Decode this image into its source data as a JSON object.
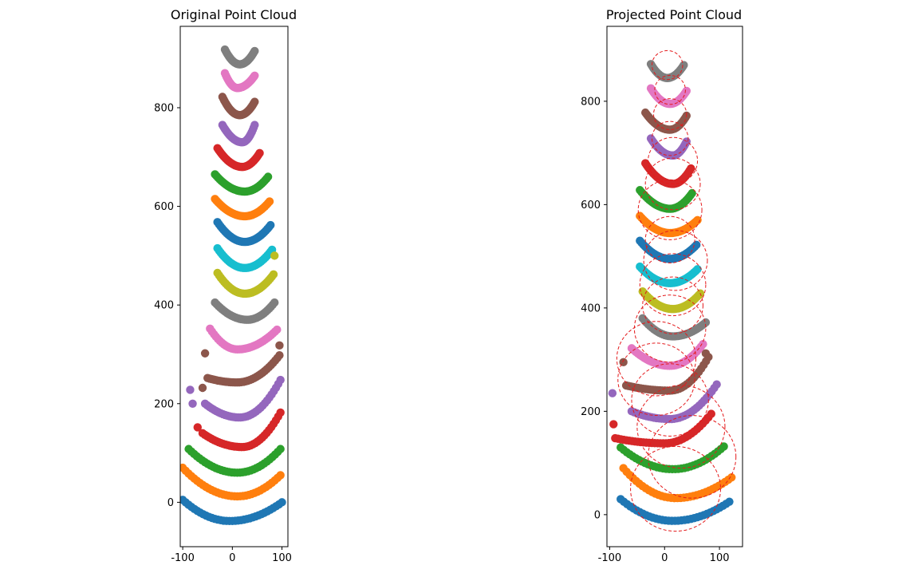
{
  "chart_data": [
    {
      "type": "scatter",
      "title": "Original Point Cloud",
      "xlim": [
        -105,
        112
      ],
      "ylim": [
        -90,
        965
      ],
      "xticks": [
        -100,
        0,
        100
      ],
      "yticks": [
        0,
        200,
        400,
        600,
        800
      ],
      "colors": [
        "#1f77b4",
        "#ff7f0e",
        "#2ca02c",
        "#d62728",
        "#9467bd",
        "#8c564b",
        "#e377c2",
        "#7f7f7f",
        "#bcbd22",
        "#17becf",
        "#1f77b4",
        "#ff7f0e",
        "#2ca02c",
        "#d62728",
        "#9467bd",
        "#8c564b",
        "#e377c2",
        "#7f7f7f"
      ],
      "arcs": [
        {
          "x_start": -100,
          "y_start": 5,
          "x_min": -5,
          "y_min": -38,
          "x_end": 100,
          "y_end": 0
        },
        {
          "x_start": -100,
          "y_start": 70,
          "x_min": 10,
          "y_min": 12,
          "x_end": 97,
          "y_end": 55
        },
        {
          "x_start": -88,
          "y_start": 108,
          "x_min": 10,
          "y_min": 60,
          "x_end": 97,
          "y_end": 108
        },
        {
          "x_start": -60,
          "y_start": 140,
          "x_min": 20,
          "y_min": 112,
          "x_end": 97,
          "y_end": 182
        },
        {
          "x_start": -55,
          "y_start": 200,
          "x_min": 15,
          "y_min": 172,
          "x_end": 97,
          "y_end": 248
        },
        {
          "x_start": -50,
          "y_start": 252,
          "x_min": 10,
          "y_min": 243,
          "x_end": 95,
          "y_end": 298
        },
        {
          "x_start": -45,
          "y_start": 352,
          "x_min": 10,
          "y_min": 310,
          "x_end": 90,
          "y_end": 350
        },
        {
          "x_start": -35,
          "y_start": 405,
          "x_min": 30,
          "y_min": 370,
          "x_end": 85,
          "y_end": 405
        },
        {
          "x_start": -30,
          "y_start": 465,
          "x_min": 25,
          "y_min": 423,
          "x_end": 83,
          "y_end": 462
        },
        {
          "x_start": -30,
          "y_start": 515,
          "x_min": 25,
          "y_min": 475,
          "x_end": 80,
          "y_end": 512
        },
        {
          "x_start": -30,
          "y_start": 568,
          "x_min": 25,
          "y_min": 528,
          "x_end": 77,
          "y_end": 562
        },
        {
          "x_start": -35,
          "y_start": 615,
          "x_min": 25,
          "y_min": 580,
          "x_end": 75,
          "y_end": 610
        },
        {
          "x_start": -35,
          "y_start": 665,
          "x_min": 25,
          "y_min": 630,
          "x_end": 72,
          "y_end": 660
        },
        {
          "x_start": -30,
          "y_start": 718,
          "x_min": 20,
          "y_min": 680,
          "x_end": 55,
          "y_end": 708
        },
        {
          "x_start": -20,
          "y_start": 765,
          "x_min": 20,
          "y_min": 730,
          "x_end": 45,
          "y_end": 765
        },
        {
          "x_start": -20,
          "y_start": 822,
          "x_min": 15,
          "y_min": 785,
          "x_end": 45,
          "y_end": 812
        },
        {
          "x_start": -15,
          "y_start": 870,
          "x_min": 10,
          "y_min": 840,
          "x_end": 45,
          "y_end": 865
        },
        {
          "x_start": -15,
          "y_start": 918,
          "x_min": 15,
          "y_min": 888,
          "x_end": 45,
          "y_end": 915
        }
      ],
      "extra_points": [
        {
          "x": -85,
          "y": 228,
          "series": 4
        },
        {
          "x": -80,
          "y": 200,
          "series": 4
        },
        {
          "x": -60,
          "y": 232,
          "series": 5
        },
        {
          "x": -55,
          "y": 302,
          "series": 5
        },
        {
          "x": 95,
          "y": 318,
          "series": 5
        },
        {
          "x": -70,
          "y": 152,
          "series": 3
        },
        {
          "x": 85,
          "y": 500,
          "series": 8
        }
      ]
    },
    {
      "type": "scatter",
      "title": "Projected Point Cloud",
      "xlim": [
        -105,
        142
      ],
      "ylim": [
        -62,
        945
      ],
      "xticks": [
        -100,
        0,
        100
      ],
      "yticks": [
        0,
        200,
        400,
        600,
        800
      ],
      "colors": [
        "#1f77b4",
        "#ff7f0e",
        "#2ca02c",
        "#d62728",
        "#9467bd",
        "#8c564b",
        "#e377c2",
        "#7f7f7f",
        "#bcbd22",
        "#17becf",
        "#1f77b4",
        "#ff7f0e",
        "#2ca02c",
        "#d62728",
        "#9467bd",
        "#8c564b",
        "#e377c2",
        "#7f7f7f"
      ],
      "circle_color": "#e41a1c",
      "arcs": [
        {
          "x_start": -80,
          "y_start": 30,
          "x_min": 15,
          "y_min": -12,
          "x_end": 118,
          "y_end": 25
        },
        {
          "x_start": -75,
          "y_start": 90,
          "x_min": 20,
          "y_min": 32,
          "x_end": 122,
          "y_end": 72
        },
        {
          "x_start": -80,
          "y_start": 130,
          "x_min": 15,
          "y_min": 88,
          "x_end": 108,
          "y_end": 132
        },
        {
          "x_start": -90,
          "y_start": 148,
          "x_min": 0,
          "y_min": 138,
          "x_end": 85,
          "y_end": 195
        },
        {
          "x_start": -60,
          "y_start": 200,
          "x_min": 10,
          "y_min": 185,
          "x_end": 95,
          "y_end": 252
        },
        {
          "x_start": -70,
          "y_start": 250,
          "x_min": 10,
          "y_min": 240,
          "x_end": 80,
          "y_end": 305
        },
        {
          "x_start": -60,
          "y_start": 322,
          "x_min": 10,
          "y_min": 288,
          "x_end": 70,
          "y_end": 330
        },
        {
          "x_start": -40,
          "y_start": 380,
          "x_min": 15,
          "y_min": 345,
          "x_end": 75,
          "y_end": 372
        },
        {
          "x_start": -40,
          "y_start": 432,
          "x_min": 15,
          "y_min": 398,
          "x_end": 65,
          "y_end": 428
        },
        {
          "x_start": -45,
          "y_start": 480,
          "x_min": 10,
          "y_min": 448,
          "x_end": 60,
          "y_end": 475
        },
        {
          "x_start": -45,
          "y_start": 530,
          "x_min": 10,
          "y_min": 495,
          "x_end": 58,
          "y_end": 522
        },
        {
          "x_start": -45,
          "y_start": 578,
          "x_min": 10,
          "y_min": 545,
          "x_end": 60,
          "y_end": 570
        },
        {
          "x_start": -45,
          "y_start": 628,
          "x_min": 10,
          "y_min": 592,
          "x_end": 50,
          "y_end": 622
        },
        {
          "x_start": -35,
          "y_start": 680,
          "x_min": 15,
          "y_min": 640,
          "x_end": 48,
          "y_end": 670
        },
        {
          "x_start": -25,
          "y_start": 728,
          "x_min": 15,
          "y_min": 695,
          "x_end": 40,
          "y_end": 722
        },
        {
          "x_start": -35,
          "y_start": 778,
          "x_min": 10,
          "y_min": 745,
          "x_end": 40,
          "y_end": 772
        },
        {
          "x_start": -25,
          "y_start": 825,
          "x_min": 10,
          "y_min": 795,
          "x_end": 40,
          "y_end": 820
        },
        {
          "x_start": -25,
          "y_start": 872,
          "x_min": 5,
          "y_min": 845,
          "x_end": 35,
          "y_end": 870
        }
      ],
      "extra_points": [
        {
          "x": -75,
          "y": 295,
          "series": 5
        },
        {
          "x": 75,
          "y": 312,
          "series": 5
        },
        {
          "x": -93,
          "y": 175,
          "series": 3
        },
        {
          "x": -95,
          "y": 235,
          "series": 4
        }
      ],
      "circles": [
        {
          "cx": 20,
          "cy": 50,
          "r": 82
        },
        {
          "cx": 50,
          "cy": 112,
          "r": 80
        },
        {
          "cx": 30,
          "cy": 170,
          "r": 80
        },
        {
          "cx": 10,
          "cy": 222,
          "r": 70
        },
        {
          "cx": -15,
          "cy": 262,
          "r": 70
        },
        {
          "cx": -15,
          "cy": 302,
          "r": 72
        },
        {
          "cx": 10,
          "cy": 360,
          "r": 65
        },
        {
          "cx": 15,
          "cy": 405,
          "r": 55
        },
        {
          "cx": 15,
          "cy": 445,
          "r": 60
        },
        {
          "cx": 20,
          "cy": 492,
          "r": 58
        },
        {
          "cx": 10,
          "cy": 532,
          "r": 45
        },
        {
          "cx": 10,
          "cy": 590,
          "r": 58
        },
        {
          "cx": 15,
          "cy": 640,
          "r": 50
        },
        {
          "cx": 15,
          "cy": 685,
          "r": 45
        },
        {
          "cx": 10,
          "cy": 728,
          "r": 33
        },
        {
          "cx": 10,
          "cy": 775,
          "r": 30
        },
        {
          "cx": 10,
          "cy": 822,
          "r": 28
        },
        {
          "cx": 5,
          "cy": 870,
          "r": 28
        }
      ]
    }
  ]
}
